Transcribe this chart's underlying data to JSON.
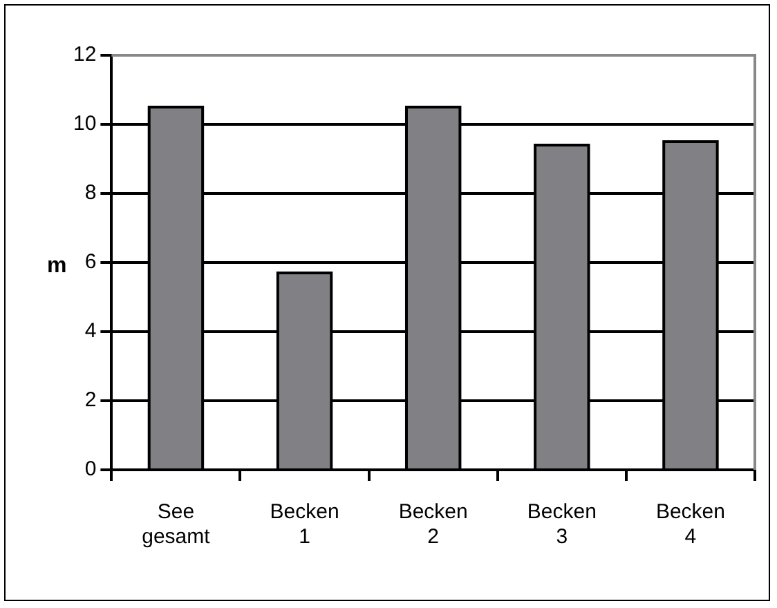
{
  "chart_data": {
    "type": "bar",
    "ylabel": "m",
    "categories": [
      "See gesamt",
      "Becken 1",
      "Becken 2",
      "Becken 3",
      "Becken 4"
    ],
    "values": [
      10.5,
      5.7,
      10.5,
      9.4,
      9.5
    ],
    "color": "#808085",
    "ylim": [
      0,
      12
    ],
    "yticks": [
      0,
      2,
      4,
      6,
      8,
      10,
      12
    ],
    "grid": "y"
  }
}
